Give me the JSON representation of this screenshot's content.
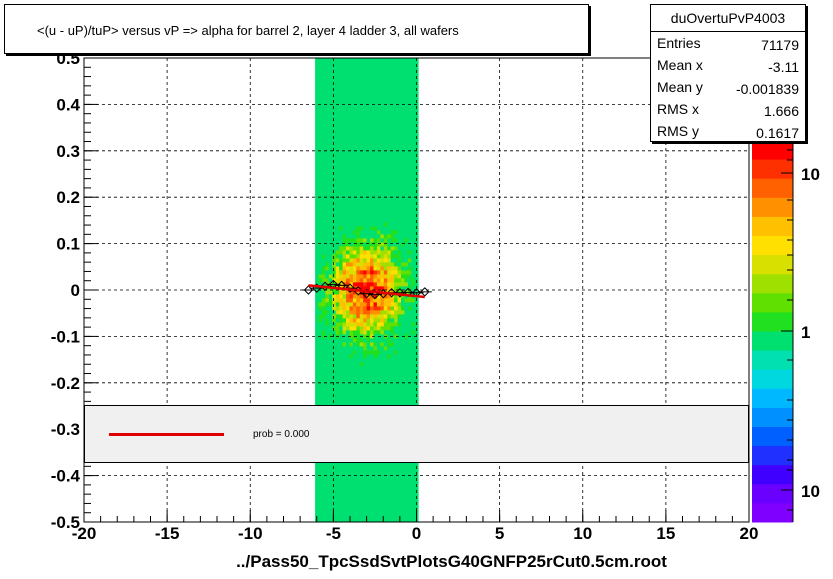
{
  "title": "<(u - uP)/tuP>  versus   vP => alpha for barrel 2, layer 4 ladder 3, all wafers",
  "stats": {
    "name": "duOvertuPvP4003",
    "rows": [
      {
        "label": "Entries",
        "value": "71179"
      },
      {
        "label": "Mean x",
        "value": "-3.11"
      },
      {
        "label": "Mean y",
        "value": "-0.001839"
      },
      {
        "label": "RMS x",
        "value": "1.666"
      },
      {
        "label": "RMS y",
        "value": "0.1617"
      }
    ]
  },
  "fit": {
    "label": "prob = 0.000",
    "color": "#e00000"
  },
  "xlabel": "../Pass50_TpcSsdSvtPlotsG40GNFP25rCut0.5cm.root",
  "colorbar": {
    "tick_labels": [
      "10",
      "1",
      "10"
    ]
  },
  "chart_data": {
    "type": "heatmap",
    "title": "<(u - uP)/tuP>  versus   vP => alpha for barrel 2, layer 4 ladder 3, all wafers",
    "xlabel": "../Pass50_TpcSsdSvtPlotsG40GNFP25rCut0.5cm.root",
    "ylabel": "",
    "xlim": [
      -20,
      20
    ],
    "ylim": [
      -0.5,
      0.5
    ],
    "x_ticks": [
      "-20",
      "-15",
      "-10",
      "-5",
      "0",
      "5",
      "10",
      "15",
      "20"
    ],
    "y_ticks": [
      "-0.5",
      "-0.4",
      "-0.3",
      "-0.2",
      "-0.1",
      "0",
      "0.1",
      "0.2",
      "0.3",
      "0.4",
      "0.5"
    ],
    "grid": true,
    "log_z": true,
    "occupied_x_range": [
      -6.1,
      0.1
    ],
    "profile_points": {
      "x": [
        -6.5,
        -6.0,
        -5.5,
        -5.0,
        -4.5,
        -4.0,
        -3.5,
        -3.0,
        -2.5,
        -2.0,
        -1.5,
        -1.0,
        -0.5,
        0.0,
        0.5
      ],
      "y": [
        0.0,
        0.004,
        0.008,
        0.012,
        0.01,
        0.004,
        -0.002,
        -0.008,
        -0.01,
        -0.008,
        -0.006,
        -0.006,
        -0.005,
        -0.006,
        -0.004
      ]
    },
    "fit_line": {
      "x": [
        -6.5,
        0.5
      ],
      "y": [
        0.01,
        -0.015
      ],
      "prob": "prob = 0.000"
    }
  }
}
